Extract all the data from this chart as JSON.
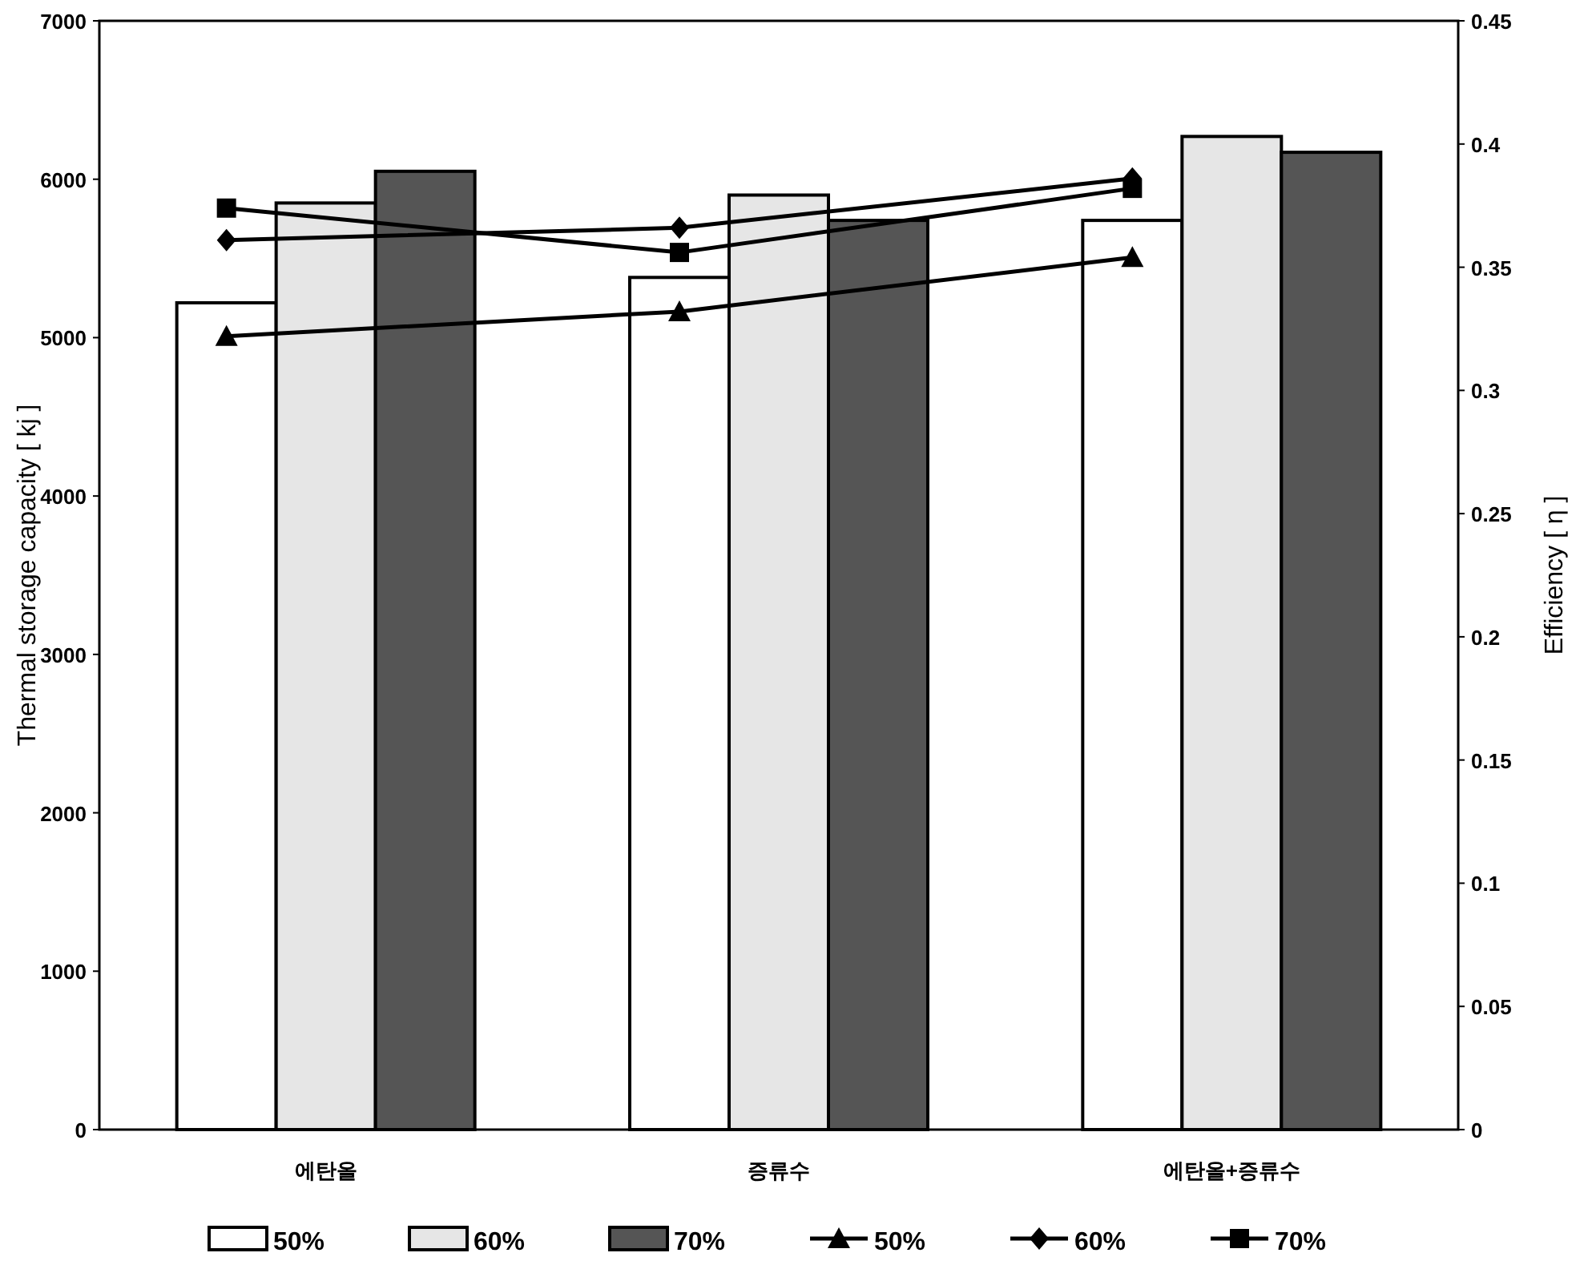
{
  "chart_data": {
    "type": "bar",
    "ylabel": "Thermal storage capacity [ kj ]",
    "y2label": "Efficiency [ η ]",
    "categories": [
      "에탄올",
      "증류수",
      "에탄올+증류수"
    ],
    "series": [
      {
        "name": "50%",
        "color": "#ffffff",
        "values": [
          5220,
          5380,
          5740
        ]
      },
      {
        "name": "60%",
        "color": "#e6e6e6",
        "values": [
          5850,
          5900,
          6270
        ]
      },
      {
        "name": "70%",
        "color": "#555555",
        "values": [
          6050,
          5740,
          6170
        ]
      },
      {
        "name": "50%",
        "type": "line",
        "axis": "y2",
        "marker": "triangle",
        "color": "#000000",
        "values": [
          0.322,
          0.332,
          0.354
        ]
      },
      {
        "name": "60%",
        "type": "line",
        "axis": "y2",
        "marker": "diamond",
        "color": "#000000",
        "values": [
          0.361,
          0.366,
          0.386
        ]
      },
      {
        "name": "70%",
        "type": "line",
        "axis": "y2",
        "marker": "square",
        "color": "#000000",
        "values": [
          0.374,
          0.356,
          0.382
        ]
      }
    ],
    "ylim": [
      0,
      7000
    ],
    "yticks": [
      0,
      1000,
      2000,
      3000,
      4000,
      5000,
      6000,
      7000
    ],
    "y2lim": [
      0,
      0.45
    ],
    "y2ticks": [
      0,
      0.05,
      0.1,
      0.15,
      0.2,
      0.25,
      0.3,
      0.35,
      0.4,
      0.45
    ],
    "grid": false,
    "legend": "bottom"
  }
}
